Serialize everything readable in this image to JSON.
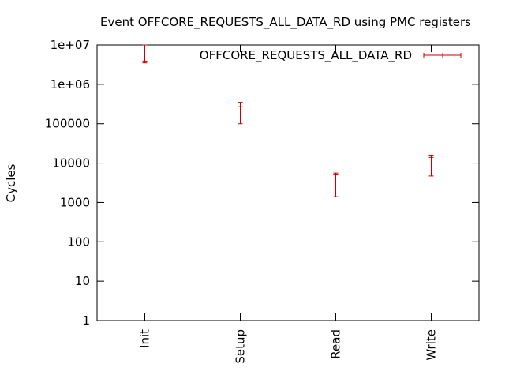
{
  "chart_data": {
    "type": "errorbar",
    "title": "Event OFFCORE_REQUESTS_ALL_DATA_RD using PMC registers",
    "xlabel": "",
    "ylabel": "Cycles",
    "yscale": "log",
    "ylim": [
      1,
      10000000
    ],
    "yticks": [
      {
        "value": 1,
        "label": "1"
      },
      {
        "value": 10,
        "label": "10"
      },
      {
        "value": 100,
        "label": "100"
      },
      {
        "value": 1000,
        "label": "1000"
      },
      {
        "value": 10000,
        "label": "10000"
      },
      {
        "value": 100000,
        "label": "100000"
      },
      {
        "value": 1000000,
        "label": "1e+06"
      },
      {
        "value": 10000000,
        "label": "1e+07"
      }
    ],
    "categories": [
      "Init",
      "Setup",
      "Read",
      "Write"
    ],
    "series": [
      {
        "name": "OFFCORE_REQUESTS_ALL_DATA_RD",
        "color": "#cc0000",
        "points": [
          {
            "category": "Init",
            "value": 3900000,
            "low": 3500000,
            "high": 10000000
          },
          {
            "category": "Setup",
            "value": 270000,
            "low": 100000,
            "high": 350000
          },
          {
            "category": "Read",
            "value": 5000,
            "low": 1400.0,
            "high": 5600
          },
          {
            "category": "Write",
            "value": 14000,
            "low": 4700,
            "high": 16000
          }
        ]
      }
    ],
    "legend_position": "top-right",
    "grid": false
  }
}
